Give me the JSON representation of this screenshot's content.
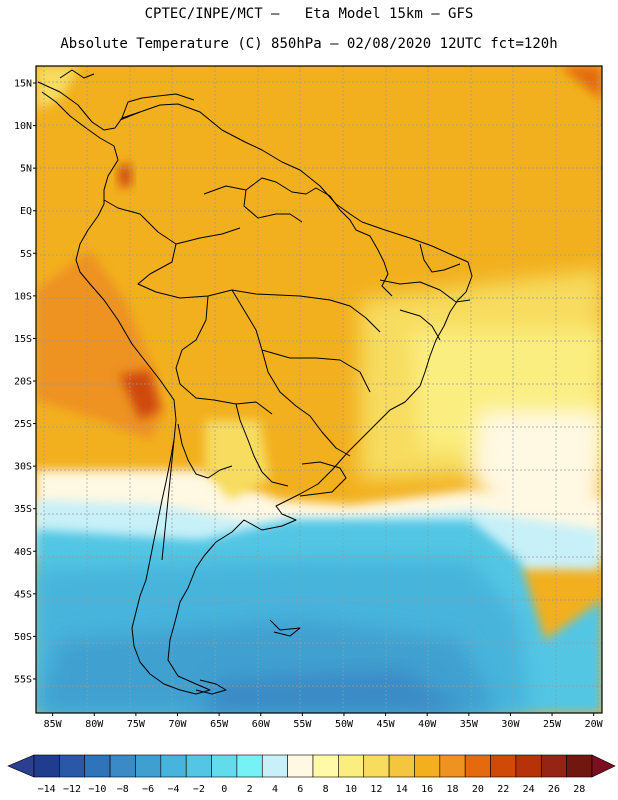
{
  "header": {
    "line1": "CPTEC/INPE/MCT –   Eta Model 15km – GFS",
    "line2": "Absolute Temperature (C) 850hPa – 02/08/2020 12UTC fct=120h"
  },
  "map": {
    "lon_range": [
      -87,
      -19
    ],
    "lat_range": [
      -59,
      17
    ],
    "lat_labels": [
      "15N",
      "10N",
      "5N",
      "EQ",
      "5S",
      "10S",
      "15S",
      "20S",
      "25S",
      "30S",
      "35S",
      "40S",
      "45S",
      "50S",
      "55S"
    ],
    "lon_labels": [
      "85W",
      "80W",
      "75W",
      "70W",
      "65W",
      "60W",
      "55W",
      "50W",
      "45W",
      "40W",
      "35W",
      "30W",
      "25W",
      "20W"
    ]
  },
  "colorbar": {
    "labels": [
      "-14",
      "-12",
      "-10",
      "-8",
      "-6",
      "-4",
      "-2",
      "0",
      "2",
      "4",
      "6",
      "8",
      "10",
      "12",
      "14",
      "16",
      "18",
      "20",
      "22",
      "24",
      "26",
      "28"
    ],
    "colors": [
      "#1f3d8c",
      "#2a58a6",
      "#2f73b8",
      "#3a8ac6",
      "#3fa0d0",
      "#46b4dc",
      "#52c6e4",
      "#62dcea",
      "#76f2f4",
      "#c8f0f8",
      "#fff8e2",
      "#fffaa8",
      "#fbee80",
      "#f7dc5e",
      "#f4c640",
      "#f2b01e",
      "#ee9222",
      "#e46a10",
      "#cf4a08",
      "#b6330a",
      "#962414",
      "#6e1810"
    ],
    "under_color": "#2a3f8f",
    "over_color": "#7a0f20"
  }
}
